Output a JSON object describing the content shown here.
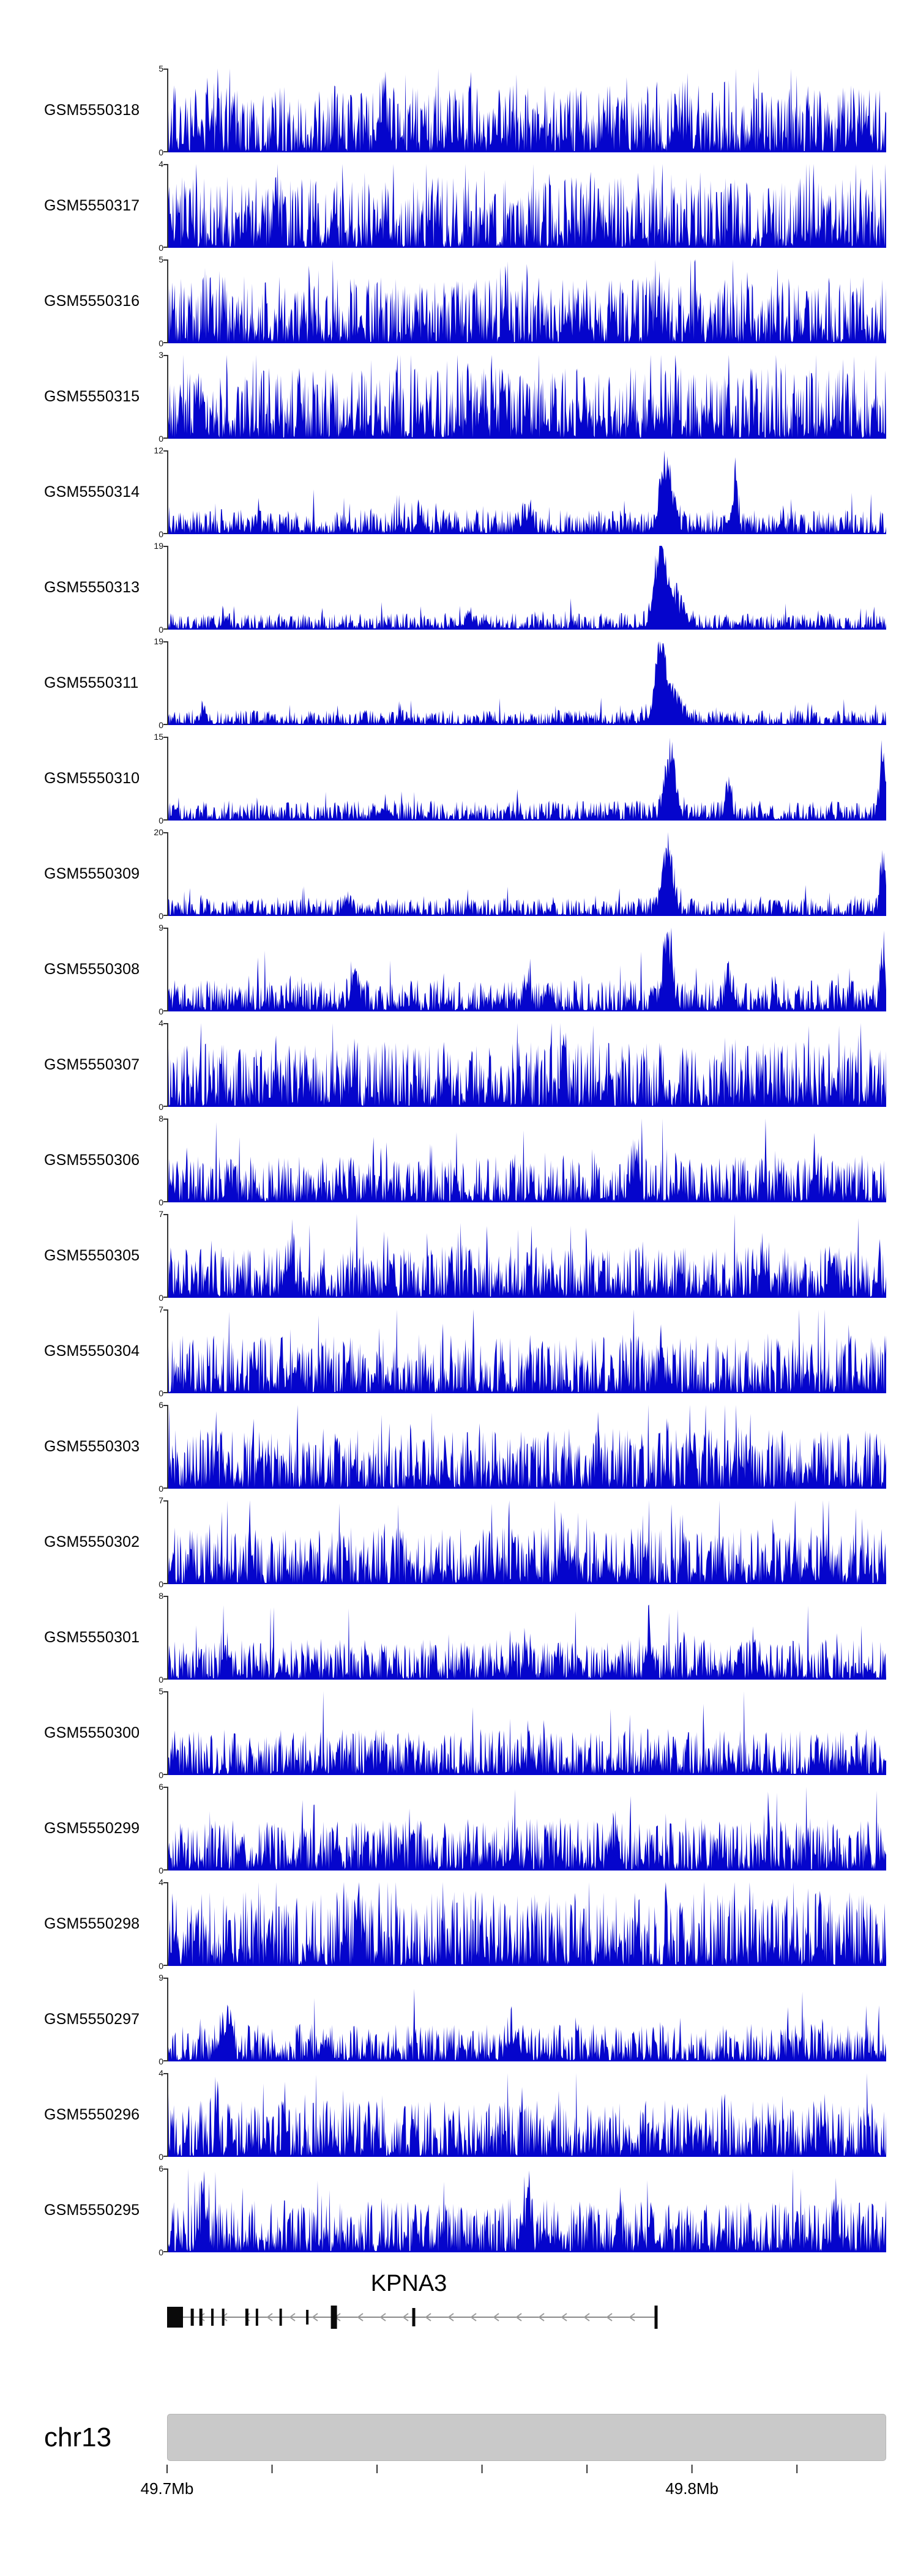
{
  "figure": {
    "background": "#ffffff"
  },
  "chart_data": {
    "type": "area",
    "title": "",
    "description": "Genome browser coverage tracks for 23 GEO samples over chr13 around the KPNA3 locus",
    "signal_color": "#0505cc",
    "axis_color": "#333333",
    "x_axis": {
      "unit": "Mb",
      "range": [
        49.7,
        49.837
      ],
      "ticks": [
        49.7,
        49.72,
        49.74,
        49.76,
        49.78,
        49.8,
        49.82
      ],
      "labeled_ticks": [
        {
          "value": 49.7,
          "label": "49.7Mb"
        },
        {
          "value": 49.8,
          "label": "49.8Mb"
        }
      ]
    },
    "tracks": [
      {
        "label": "GSM5550318",
        "ymin": 0,
        "ymax": 5,
        "density": 0.8,
        "peaks": [
          {
            "pos": 0.3,
            "h": 0.3,
            "w": 0.01
          },
          {
            "pos": 0.72,
            "h": 0.25,
            "w": 0.008
          }
        ]
      },
      {
        "label": "GSM5550317",
        "ymin": 0,
        "ymax": 4,
        "density": 0.85,
        "peaks": []
      },
      {
        "label": "GSM5550316",
        "ymin": 0,
        "ymax": 5,
        "density": 0.8,
        "peaks": [
          {
            "pos": 0.47,
            "h": 0.45,
            "w": 0.005
          },
          {
            "pos": 0.68,
            "h": 0.35,
            "w": 0.005
          }
        ]
      },
      {
        "label": "GSM5550315",
        "ymin": 0,
        "ymax": 3,
        "density": 0.85,
        "peaks": []
      },
      {
        "label": "GSM5550314",
        "ymin": 0,
        "ymax": 12,
        "density": 0.3,
        "peaks": [
          {
            "pos": 0.695,
            "h": 0.95,
            "w": 0.012
          },
          {
            "pos": 0.79,
            "h": 0.85,
            "w": 0.004
          },
          {
            "pos": 0.5,
            "h": 0.22,
            "w": 0.01
          },
          {
            "pos": 0.35,
            "h": 0.18,
            "w": 0.008
          }
        ]
      },
      {
        "label": "GSM5550313",
        "ymin": 0,
        "ymax": 19,
        "density": 0.2,
        "peaks": [
          {
            "pos": 0.685,
            "h": 0.95,
            "w": 0.01
          },
          {
            "pos": 0.7,
            "h": 0.45,
            "w": 0.022
          },
          {
            "pos": 0.08,
            "h": 0.18,
            "w": 0.006
          },
          {
            "pos": 0.42,
            "h": 0.14,
            "w": 0.01
          }
        ]
      },
      {
        "label": "GSM5550311",
        "ymin": 0,
        "ymax": 19,
        "density": 0.18,
        "peaks": [
          {
            "pos": 0.685,
            "h": 0.95,
            "w": 0.009
          },
          {
            "pos": 0.7,
            "h": 0.4,
            "w": 0.02
          },
          {
            "pos": 0.05,
            "h": 0.14,
            "w": 0.005
          }
        ]
      },
      {
        "label": "GSM5550310",
        "ymin": 0,
        "ymax": 15,
        "density": 0.24,
        "peaks": [
          {
            "pos": 0.7,
            "h": 0.9,
            "w": 0.01
          },
          {
            "pos": 0.78,
            "h": 0.45,
            "w": 0.006
          },
          {
            "pos": 0.995,
            "h": 0.85,
            "w": 0.006
          },
          {
            "pos": 0.3,
            "h": 0.14,
            "w": 0.01
          }
        ]
      },
      {
        "label": "GSM5550309",
        "ymin": 0,
        "ymax": 20,
        "density": 0.22,
        "peaks": [
          {
            "pos": 0.695,
            "h": 0.9,
            "w": 0.01
          },
          {
            "pos": 0.995,
            "h": 0.8,
            "w": 0.005
          },
          {
            "pos": 0.25,
            "h": 0.14,
            "w": 0.01
          }
        ]
      },
      {
        "label": "GSM5550308",
        "ymin": 0,
        "ymax": 9,
        "density": 0.38,
        "peaks": [
          {
            "pos": 0.695,
            "h": 0.9,
            "w": 0.009
          },
          {
            "pos": 0.78,
            "h": 0.5,
            "w": 0.006
          },
          {
            "pos": 0.995,
            "h": 0.8,
            "w": 0.005
          },
          {
            "pos": 0.26,
            "h": 0.45,
            "w": 0.008
          },
          {
            "pos": 0.5,
            "h": 0.4,
            "w": 0.006
          }
        ]
      },
      {
        "label": "GSM5550307",
        "ymin": 0,
        "ymax": 4,
        "density": 0.78,
        "peaks": [
          {
            "pos": 0.15,
            "h": 0.35,
            "w": 0.006
          },
          {
            "pos": 0.55,
            "h": 0.3,
            "w": 0.006
          }
        ]
      },
      {
        "label": "GSM5550306",
        "ymin": 0,
        "ymax": 8,
        "density": 0.55,
        "peaks": [
          {
            "pos": 0.65,
            "h": 0.45,
            "w": 0.008
          },
          {
            "pos": 0.9,
            "h": 0.35,
            "w": 0.006
          }
        ]
      },
      {
        "label": "GSM5550305",
        "ymin": 0,
        "ymax": 7,
        "density": 0.62,
        "peaks": [
          {
            "pos": 0.17,
            "h": 0.4,
            "w": 0.006
          },
          {
            "pos": 0.83,
            "h": 0.35,
            "w": 0.006
          }
        ]
      },
      {
        "label": "GSM5550304",
        "ymin": 0,
        "ymax": 7,
        "density": 0.7,
        "peaks": []
      },
      {
        "label": "GSM5550303",
        "ymin": 0,
        "ymax": 6,
        "density": 0.72,
        "peaks": []
      },
      {
        "label": "GSM5550302",
        "ymin": 0,
        "ymax": 7,
        "density": 0.68,
        "peaks": [
          {
            "pos": 0.55,
            "h": 0.35,
            "w": 0.008
          }
        ]
      },
      {
        "label": "GSM5550301",
        "ymin": 0,
        "ymax": 8,
        "density": 0.48,
        "peaks": [
          {
            "pos": 0.67,
            "h": 0.45,
            "w": 0.006
          },
          {
            "pos": 0.08,
            "h": 0.35,
            "w": 0.006
          }
        ]
      },
      {
        "label": "GSM5550300",
        "ymin": 0,
        "ymax": 5,
        "density": 0.55,
        "peaks": []
      },
      {
        "label": "GSM5550299",
        "ymin": 0,
        "ymax": 6,
        "density": 0.62,
        "peaks": [
          {
            "pos": 0.62,
            "h": 0.4,
            "w": 0.006
          }
        ]
      },
      {
        "label": "GSM5550298",
        "ymin": 0,
        "ymax": 4,
        "density": 0.9,
        "peaks": []
      },
      {
        "label": "GSM5550297",
        "ymin": 0,
        "ymax": 9,
        "density": 0.45,
        "peaks": [
          {
            "pos": 0.08,
            "h": 0.45,
            "w": 0.01
          },
          {
            "pos": 0.48,
            "h": 0.35,
            "w": 0.01
          }
        ]
      },
      {
        "label": "GSM5550296",
        "ymin": 0,
        "ymax": 4,
        "density": 0.68,
        "peaks": []
      },
      {
        "label": "GSM5550295",
        "ymin": 0,
        "ymax": 6,
        "density": 0.62,
        "peaks": [
          {
            "pos": 0.05,
            "h": 0.45,
            "w": 0.008
          },
          {
            "pos": 0.5,
            "h": 0.5,
            "w": 0.006
          },
          {
            "pos": 0.93,
            "h": 0.45,
            "w": 0.006
          }
        ]
      }
    ],
    "gene": {
      "name": "KPNA3",
      "strand": "-",
      "title_pos": 0.336,
      "start_frac": 0.0,
      "end_frac": 0.68,
      "line_color": "#8a8a8a",
      "exon_color": "#0a0a0a",
      "exons": [
        {
          "pos": 0.0,
          "w": 26,
          "h": 34
        },
        {
          "pos": 0.035,
          "w": 5,
          "h": 28
        },
        {
          "pos": 0.047,
          "w": 5,
          "h": 28
        },
        {
          "pos": 0.063,
          "w": 4,
          "h": 28
        },
        {
          "pos": 0.078,
          "w": 4,
          "h": 28
        },
        {
          "pos": 0.111,
          "w": 5,
          "h": 28
        },
        {
          "pos": 0.125,
          "w": 4,
          "h": 28
        },
        {
          "pos": 0.158,
          "w": 4,
          "h": 28
        },
        {
          "pos": 0.195,
          "w": 4,
          "h": 24
        },
        {
          "pos": 0.232,
          "w": 10,
          "h": 38
        },
        {
          "pos": 0.343,
          "w": 5,
          "h": 30
        },
        {
          "pos": 0.68,
          "w": 5,
          "h": 38
        }
      ]
    },
    "chromosome": {
      "label": "chr13",
      "color": "#c9c9c9"
    },
    "zero_label": "0"
  }
}
